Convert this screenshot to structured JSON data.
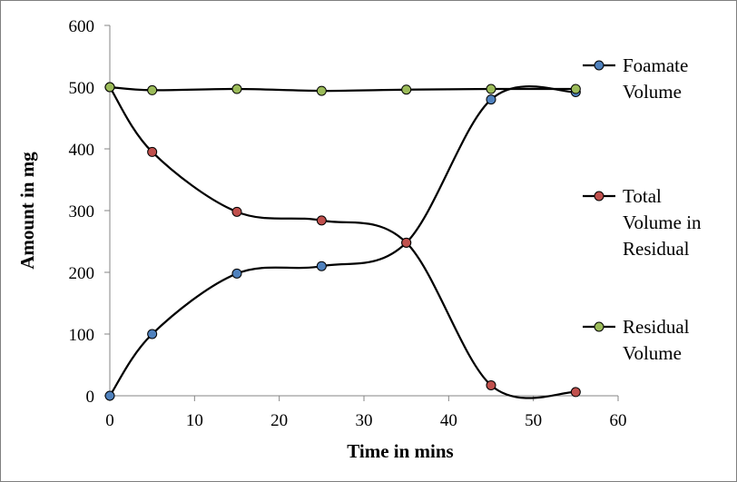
{
  "chart_data": {
    "type": "line",
    "xlabel": "Time in mins",
    "ylabel": "Amount in mg",
    "xlim": [
      0,
      60
    ],
    "ylim": [
      0,
      600
    ],
    "x_ticks": [
      0,
      10,
      20,
      30,
      40,
      50,
      60
    ],
    "y_ticks": [
      0,
      100,
      200,
      300,
      400,
      500,
      600
    ],
    "grid": false,
    "smooth": true,
    "legend_position": "right",
    "x": [
      0,
      5,
      15,
      25,
      35,
      45,
      55
    ],
    "series": [
      {
        "name_lines": [
          "Foamate",
          "Volume"
        ],
        "color": "#4f81bd",
        "values": [
          0,
          100,
          198,
          210,
          248,
          480,
          492
        ]
      },
      {
        "name_lines": [
          "Total",
          "Volume in",
          "Residual"
        ],
        "color": "#c0504d",
        "values": [
          500,
          395,
          298,
          284,
          248,
          17,
          6
        ]
      },
      {
        "name_lines": [
          "Residual",
          "Volume"
        ],
        "color": "#9bbb59",
        "values": [
          500,
          495,
          497,
          494,
          496,
          497,
          497
        ]
      }
    ]
  }
}
